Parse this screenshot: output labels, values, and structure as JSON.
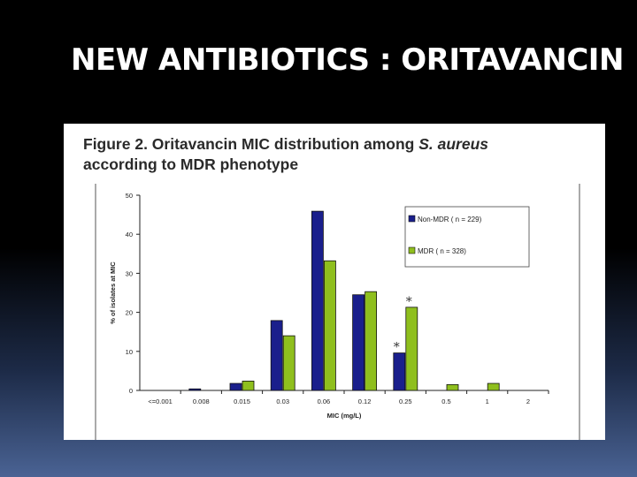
{
  "slide": {
    "title": "NEW ANTIBIOTICS : ORITAVANCIN"
  },
  "figure": {
    "caption_line1_prefix": "Figure 2. Oritavancin MIC distribution among ",
    "caption_line1_italic": "S. aureus",
    "caption_line2": "according to MDR phenotype"
  },
  "colors": {
    "non_mdr": "#1a1f8c",
    "mdr": "#8fbf1e"
  },
  "chart_data": {
    "type": "bar",
    "title": "",
    "xlabel": "MIC (mg/L)",
    "ylabel": "% of isolates at MIC",
    "ylim": [
      0,
      50
    ],
    "yticks": [
      0,
      10,
      20,
      30,
      40,
      50
    ],
    "categories": [
      "<=0.001",
      "0.008",
      "0.015",
      "0.03",
      "0.06",
      "0.12",
      "0.25",
      "0.5",
      "1",
      "2"
    ],
    "series": [
      {
        "name": "Non-MDR ( n = 229)",
        "values": [
          0,
          0.4,
          1.8,
          17.9,
          45.9,
          24.5,
          9.6,
          0,
          0,
          0
        ]
      },
      {
        "name": "MDR ( n = 328)",
        "values": [
          0,
          0,
          2.4,
          14.0,
          33.2,
          25.3,
          21.3,
          1.5,
          1.8,
          0
        ]
      }
    ],
    "annotations": [
      "*",
      "*"
    ],
    "legend_position": "top-right",
    "grid": false
  }
}
